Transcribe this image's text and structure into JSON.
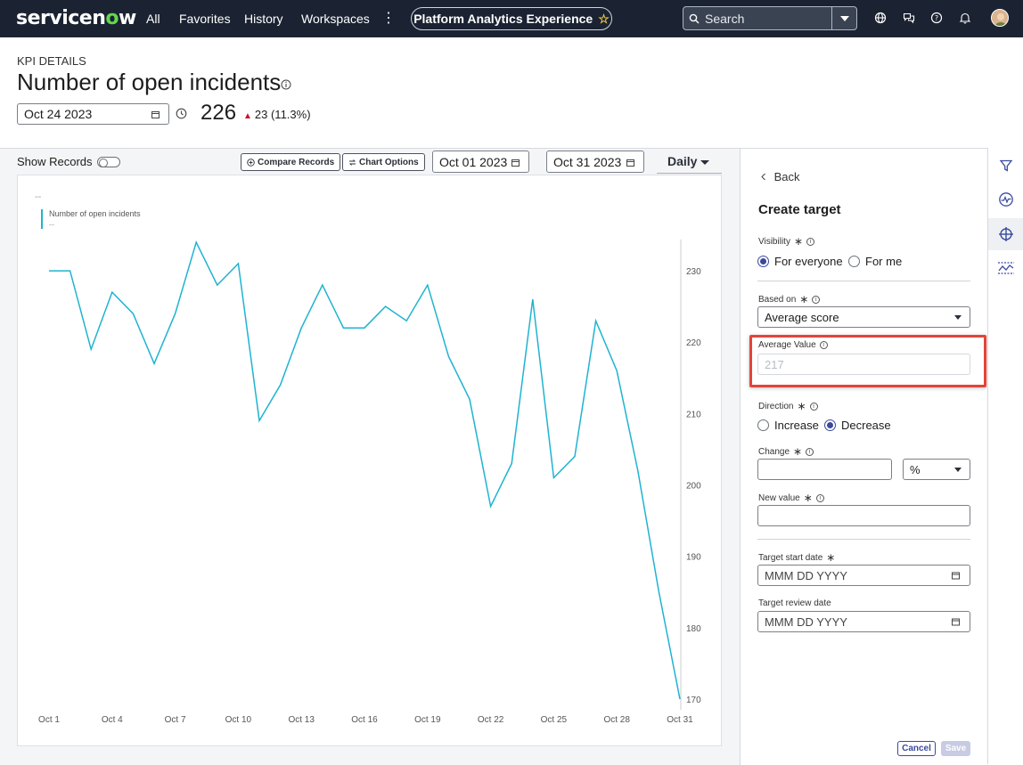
{
  "topnav": {
    "logo_text_a": "servicen",
    "logo_text_o": "o",
    "logo_text_b": "w",
    "links": [
      "All",
      "Favorites",
      "History",
      "Workspaces"
    ],
    "more": "⋮",
    "workspace_pill": "Platform Analytics Experience",
    "search_placeholder": "Search"
  },
  "header": {
    "kpi_label": "KPI DETAILS",
    "title": "Number of open incidents",
    "date": "Oct 24 2023",
    "score": "226",
    "delta": "23 (11.3%)"
  },
  "toolbar": {
    "show_records": "Show Records",
    "compare_records": "Compare Records",
    "chart_options": "Chart Options",
    "start_date": "Oct 01 2023",
    "end_date": "Oct 31 2023",
    "interval": "Daily"
  },
  "chart_data": {
    "type": "line",
    "value_placeholder": "--",
    "legend": [
      {
        "name": "Number of open incidents",
        "value": "--",
        "color": "#1fb3d1"
      }
    ],
    "x": [
      1,
      2,
      3,
      4,
      5,
      6,
      7,
      8,
      9,
      10,
      11,
      12,
      13,
      14,
      15,
      16,
      17,
      18,
      19,
      20,
      21,
      22,
      23,
      24,
      25,
      26,
      27,
      28,
      29,
      30,
      31
    ],
    "x_ticks": [
      {
        "x": 1,
        "label": "Oct 1"
      },
      {
        "x": 4,
        "label": "Oct 4"
      },
      {
        "x": 7,
        "label": "Oct 7"
      },
      {
        "x": 10,
        "label": "Oct 10"
      },
      {
        "x": 13,
        "label": "Oct 13"
      },
      {
        "x": 16,
        "label": "Oct 16"
      },
      {
        "x": 19,
        "label": "Oct 19"
      },
      {
        "x": 22,
        "label": "Oct 22"
      },
      {
        "x": 25,
        "label": "Oct 25"
      },
      {
        "x": 28,
        "label": "Oct 28"
      },
      {
        "x": 31,
        "label": "Oct 31"
      }
    ],
    "series": [
      {
        "name": "Number of open incidents",
        "values": [
          230,
          230,
          219,
          227,
          224,
          217,
          224,
          234,
          228,
          231,
          209,
          214,
          222,
          228,
          222,
          222,
          225,
          223,
          228,
          218,
          212,
          197,
          203,
          226,
          201,
          204,
          223,
          216,
          202,
          185,
          170
        ]
      }
    ],
    "y_ticks": [
      170,
      180,
      190,
      200,
      210,
      220,
      230
    ],
    "ylim": [
      169,
      234
    ],
    "xlim": [
      1,
      31
    ],
    "y_axis_side": "right",
    "grid": false
  },
  "side_panel": {
    "back": "Back",
    "title": "Create target",
    "visibility_label": "Visibility",
    "visibility_options": [
      "For everyone",
      "For me"
    ],
    "based_on_label": "Based on",
    "based_on_value": "Average score",
    "average_value_label": "Average Value",
    "average_value": "217",
    "direction_label": "Direction",
    "direction_options": [
      "Increase",
      "Decrease"
    ],
    "change_label": "Change",
    "change_unit": "%",
    "new_value_label": "New value",
    "target_start_label": "Target start date",
    "target_start_placeholder": "MMM DD YYYY",
    "target_review_label": "Target review date",
    "target_review_placeholder": "MMM DD YYYY",
    "cancel": "Cancel",
    "save": "Save"
  },
  "colors": {
    "nav_bg": "#1b2332",
    "line": "#1fb3d1",
    "accent": "#3a4a9e",
    "highlight": "#e2443a"
  }
}
